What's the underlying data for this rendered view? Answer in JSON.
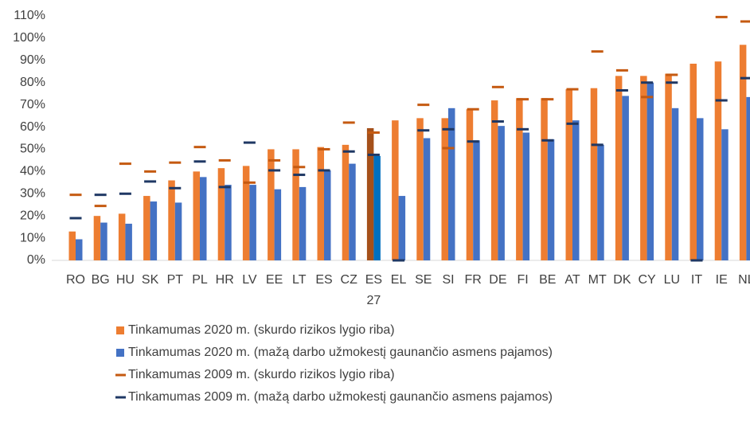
{
  "chart_data": {
    "type": "bar_with_markers",
    "categories": [
      "RO",
      "BG",
      "HU",
      "SK",
      "PT",
      "PL",
      "HR",
      "LV",
      "EE",
      "LT",
      "ES",
      "CZ",
      "ES 27",
      "EL",
      "SE",
      "SI",
      "FR",
      "DE",
      "FI",
      "BE",
      "AT",
      "MT",
      "DK",
      "CY",
      "LU",
      "IT",
      "IE",
      "NL"
    ],
    "series": [
      {
        "name": "Tinkamumas 2020 m. (skurdo rizikos lygio riba)",
        "kind": "bar",
        "color": "#ed7d31",
        "highlight_color": "#a5501a",
        "values": [
          13,
          20,
          21,
          29,
          36,
          40,
          41.5,
          42.5,
          50,
          50,
          51,
          52,
          59.5,
          63,
          64,
          64,
          68,
          72,
          73,
          73,
          77,
          77.5,
          83,
          83,
          84,
          88.5,
          89.5,
          97
        ]
      },
      {
        "name": "Tinkamumas 2020 m. (mažą darbo užmokestį gaunančio asmens pajamos)",
        "kind": "bar",
        "color": "#4472c4",
        "highlight_color": "#0070c0",
        "values": [
          9.5,
          17,
          16.5,
          26.5,
          26,
          37.5,
          34,
          34,
          32,
          33,
          40.5,
          43.5,
          47,
          29,
          55,
          68.5,
          54,
          60.5,
          57.5,
          54.5,
          63,
          52,
          74,
          80,
          68.5,
          64,
          59,
          73.5
        ]
      },
      {
        "name": "Tinkamumas 2009 m. (skurdo rizikos lygio riba)",
        "kind": "marker",
        "color": "#c55a11",
        "values": [
          29.5,
          24.5,
          43.5,
          40,
          44,
          51,
          45,
          35,
          45,
          42,
          50,
          62,
          57.5,
          null,
          70,
          50.5,
          68,
          78,
          72.5,
          72.5,
          77,
          94,
          85.5,
          73.5,
          83.5,
          null,
          109.5,
          107.5
        ]
      },
      {
        "name": "Tinkamumas 2009 m. (mažą darbo užmokestį gaunančio asmens pajamos)",
        "kind": "marker",
        "color": "#1f3864",
        "values": [
          19,
          29.5,
          30,
          35.5,
          32.5,
          44.5,
          33,
          53,
          40.5,
          38.5,
          40.5,
          49,
          47.5,
          0,
          58.5,
          59,
          53.5,
          62.5,
          59,
          54,
          61.5,
          52,
          76.5,
          80,
          80,
          0,
          72,
          82
        ]
      }
    ],
    "highlight_category": "ES 27",
    "ylim": [
      0,
      110
    ],
    "yticks": [
      {
        "value": 0,
        "label": "0%"
      },
      {
        "value": 10,
        "label": "10%"
      },
      {
        "value": 20,
        "label": "20%"
      },
      {
        "value": 30,
        "label": "30%"
      },
      {
        "value": 40,
        "label": "40%"
      },
      {
        "value": 50,
        "label": "50%"
      },
      {
        "value": 60,
        "label": "60%"
      },
      {
        "value": 70,
        "label": "70%"
      },
      {
        "value": 80,
        "label": "80%"
      },
      {
        "value": 90,
        "label": "90%"
      },
      {
        "value": 100,
        "label": "100%"
      },
      {
        "value": 110,
        "label": "110%"
      }
    ],
    "grid": false,
    "legend": "bottom"
  }
}
